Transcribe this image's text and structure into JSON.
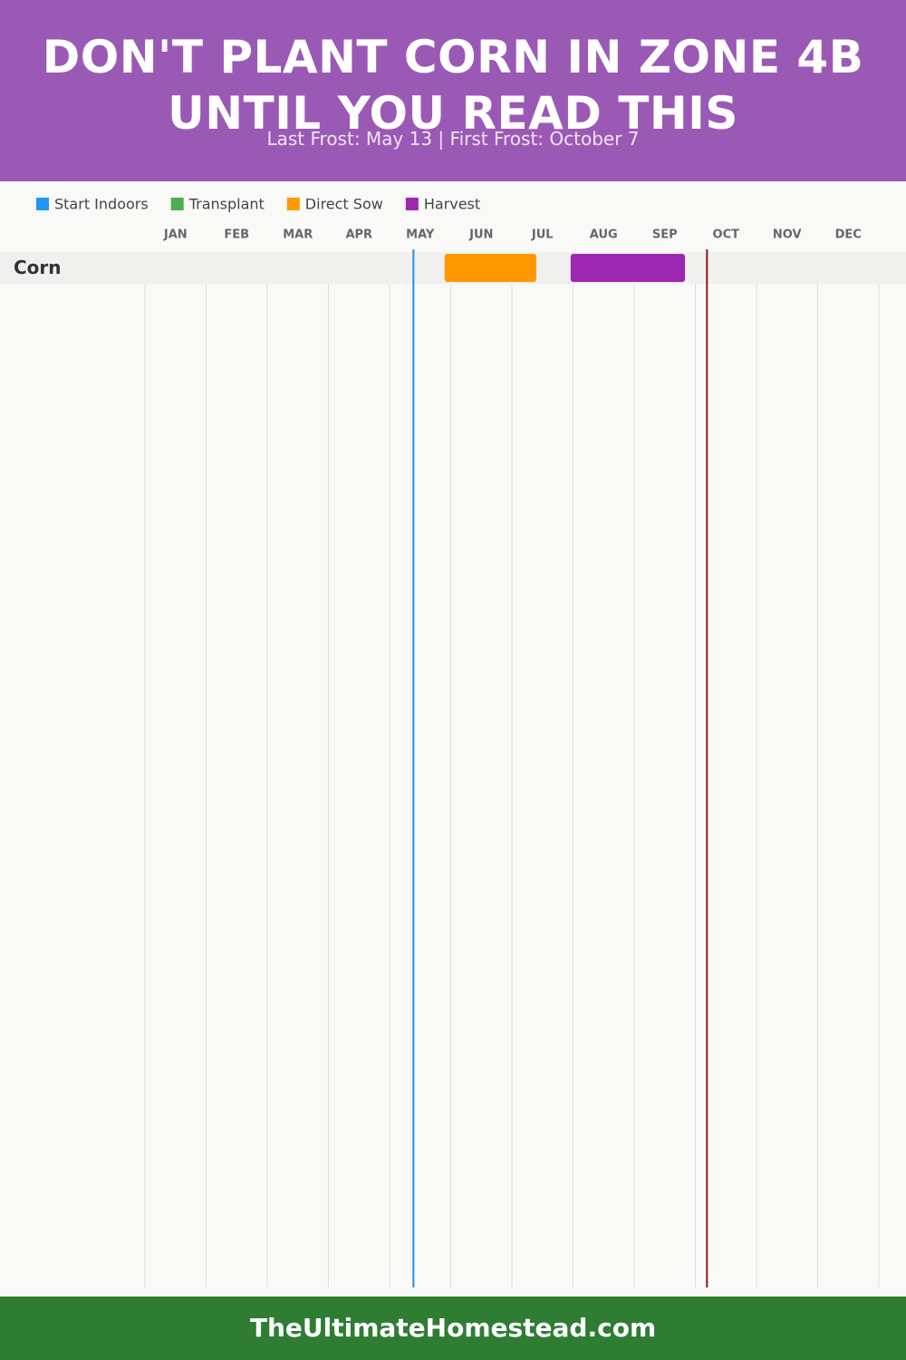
{
  "chart_data": {
    "type": "gantt",
    "title": "DON'T PLANT CORN IN ZONE 4B UNTIL YOU READ THIS",
    "subtitle": "Last Frost: May 13 | First Frost: October 7",
    "footer": "TheUltimateHomestead.com",
    "categories": [
      "Corn"
    ],
    "series": [
      {
        "name": "Start Indoors",
        "color": "#2196f3",
        "values": [
          null
        ]
      },
      {
        "name": "Transplant",
        "color": "#4caf50",
        "values": [
          null
        ]
      },
      {
        "name": "Direct Sow",
        "color": "#ff9800",
        "values": [
          [
            4.9,
            6.4
          ]
        ]
      },
      {
        "name": "Harvest",
        "color": "#9c27b0",
        "values": [
          [
            6.96,
            8.83
          ]
        ]
      }
    ],
    "xlim": [
      0,
      12
    ],
    "xticks": [
      {
        "value": 0,
        "label": "JAN"
      },
      {
        "value": 1,
        "label": "FEB"
      },
      {
        "value": 2,
        "label": "MAR"
      },
      {
        "value": 3,
        "label": "APR"
      },
      {
        "value": 4,
        "label": "MAY"
      },
      {
        "value": 5,
        "label": "JUN"
      },
      {
        "value": 6,
        "label": "JUL"
      },
      {
        "value": 7,
        "label": "AUG"
      },
      {
        "value": 8,
        "label": "SEP"
      },
      {
        "value": 9,
        "label": "OCT"
      },
      {
        "value": 10,
        "label": "NOV"
      },
      {
        "value": 11,
        "label": "DEC"
      }
    ],
    "last_frost": 4.39,
    "last_frost_color": "#2b8fd6",
    "first_frost": 9.19,
    "first_frost_color": "#8b1a1a",
    "grid": true
  }
}
